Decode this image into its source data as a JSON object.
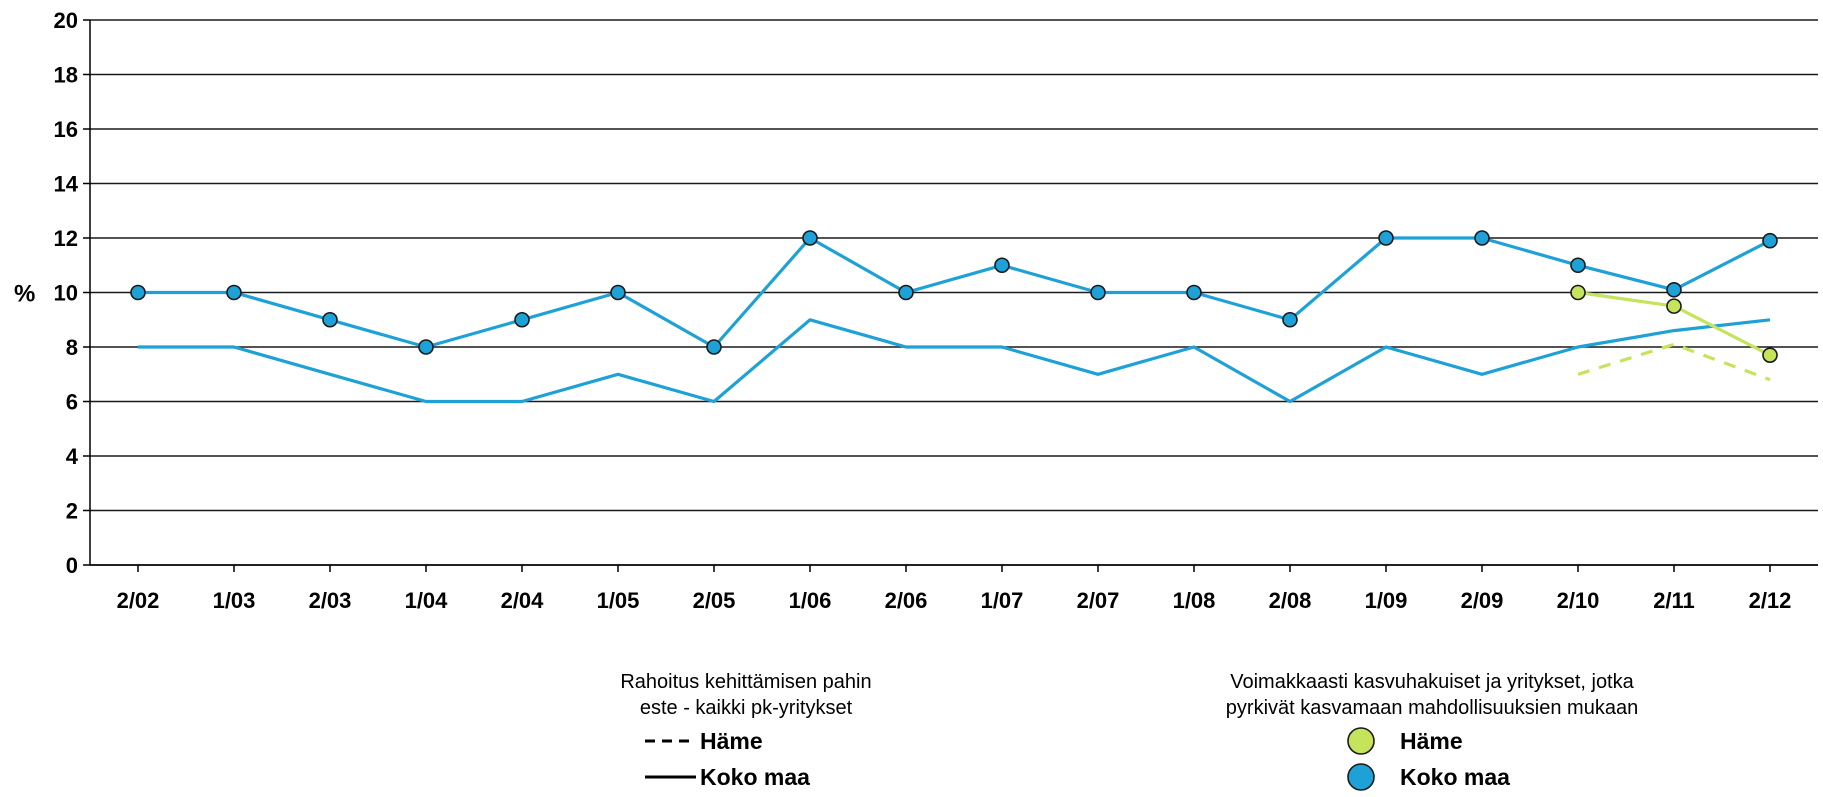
{
  "chart_data": {
    "type": "line",
    "ylabel": "%",
    "ylim": [
      0,
      20
    ],
    "yticks": [
      0,
      2,
      4,
      6,
      8,
      10,
      12,
      14,
      16,
      18,
      20
    ],
    "grid": true,
    "categories": [
      "2/02",
      "1/03",
      "2/03",
      "1/04",
      "2/04",
      "1/05",
      "2/05",
      "1/06",
      "2/06",
      "1/07",
      "2/07",
      "1/08",
      "2/08",
      "1/09",
      "2/09",
      "2/10",
      "2/11",
      "2/12"
    ],
    "series": [
      {
        "name": "Koko maa",
        "group": "growth",
        "style": "solid-markers",
        "color": "#1ea1d7",
        "values": [
          10,
          10,
          9,
          8,
          9,
          10,
          8,
          12,
          10,
          11,
          10,
          10,
          9,
          12,
          12,
          11,
          10.1,
          11.9
        ]
      },
      {
        "name": "Koko maa",
        "group": "all",
        "style": "solid",
        "color": "#1ea1d7",
        "values": [
          8,
          8,
          7,
          6,
          6,
          7,
          6,
          9,
          8,
          8,
          7,
          8,
          6,
          8,
          7,
          8,
          8.6,
          9
        ]
      },
      {
        "name": "Häme",
        "group": "growth",
        "style": "solid-markers",
        "color": "#c5e35b",
        "values": [
          null,
          null,
          null,
          null,
          null,
          null,
          null,
          null,
          null,
          null,
          null,
          null,
          null,
          null,
          null,
          10,
          9.5,
          7.7
        ]
      },
      {
        "name": "Häme",
        "group": "all",
        "style": "dashed",
        "color": "#c5e35b",
        "values": [
          null,
          null,
          null,
          null,
          null,
          null,
          null,
          null,
          null,
          null,
          null,
          null,
          null,
          null,
          null,
          7,
          8.1,
          6.8
        ]
      }
    ],
    "legend": {
      "placement": "bottom",
      "groups": [
        {
          "title_lines": [
            "Rahoitus kehittämisen pahin",
            "este - kaikki pk-yritykset"
          ],
          "items": [
            {
              "label": "Häme",
              "style": "dashed"
            },
            {
              "label": "Koko maa",
              "style": "solid"
            }
          ]
        },
        {
          "title_lines": [
            "Voimakkaasti kasvuhakuiset ja yritykset, jotka",
            "pyrkivät kasvamaan mahdollisuuksien mukaan"
          ],
          "items": [
            {
              "label": "Häme",
              "style": "marker",
              "color": "#c5e35b"
            },
            {
              "label": "Koko maa",
              "style": "marker",
              "color": "#1ea1d7"
            }
          ]
        }
      ]
    }
  }
}
